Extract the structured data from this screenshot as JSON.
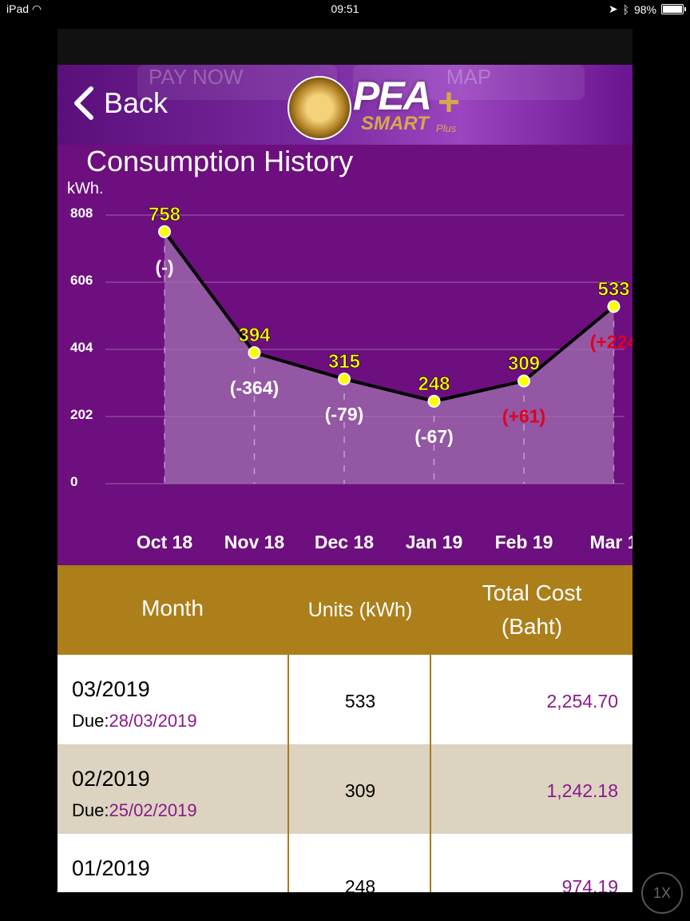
{
  "status_bar": {
    "device": "iPad",
    "time": "09:51",
    "battery": "98%",
    "battery_level": 0.98
  },
  "header": {
    "back_label": "Back",
    "logo_text": "PEA",
    "logo_sub": "SMART",
    "logo_plus": "Plus",
    "ghost_pay": "PAY NOW",
    "ghost_map": "MAP"
  },
  "chart": {
    "title": "Consumption History",
    "unit": "kWh."
  },
  "chart_data": {
    "type": "area",
    "categories": [
      "Oct 18",
      "Nov 18",
      "Dec 18",
      "Jan 19",
      "Feb 19",
      "Mar 1"
    ],
    "values": [
      758,
      394,
      315,
      248,
      309,
      533
    ],
    "diff_labels": [
      "(-)",
      "(-364)",
      "(-79)",
      "(-67)",
      "(+61)",
      "(+224"
    ],
    "diff_colors": [
      "#ffffff",
      "#ffffff",
      "#ffffff",
      "#ffffff",
      "#e00020",
      "#e00020"
    ],
    "y_ticks": [
      "808",
      "606",
      "404",
      "202",
      "0"
    ],
    "ylim": [
      0,
      808
    ],
    "line_color": "#000000",
    "point_color": "#ffff00",
    "value_label_color": "#ffff00",
    "fill_color": "#a070b0",
    "background": "#6d0f7f"
  },
  "table": {
    "headers": {
      "month": "Month",
      "units": "Units (kWh)",
      "cost_line1": "Total Cost",
      "cost_line2": "(Baht)"
    },
    "due_label": "Due:",
    "rows": [
      {
        "month": "03/2019",
        "due": "28/03/2019",
        "units": "533",
        "cost": "2,254.70"
      },
      {
        "month": "02/2019",
        "due": "25/02/2019",
        "units": "309",
        "cost": "1,242.18"
      },
      {
        "month": "01/2019",
        "due": "",
        "units": "248",
        "cost": "974.19"
      }
    ]
  },
  "zoom_button": "1X"
}
